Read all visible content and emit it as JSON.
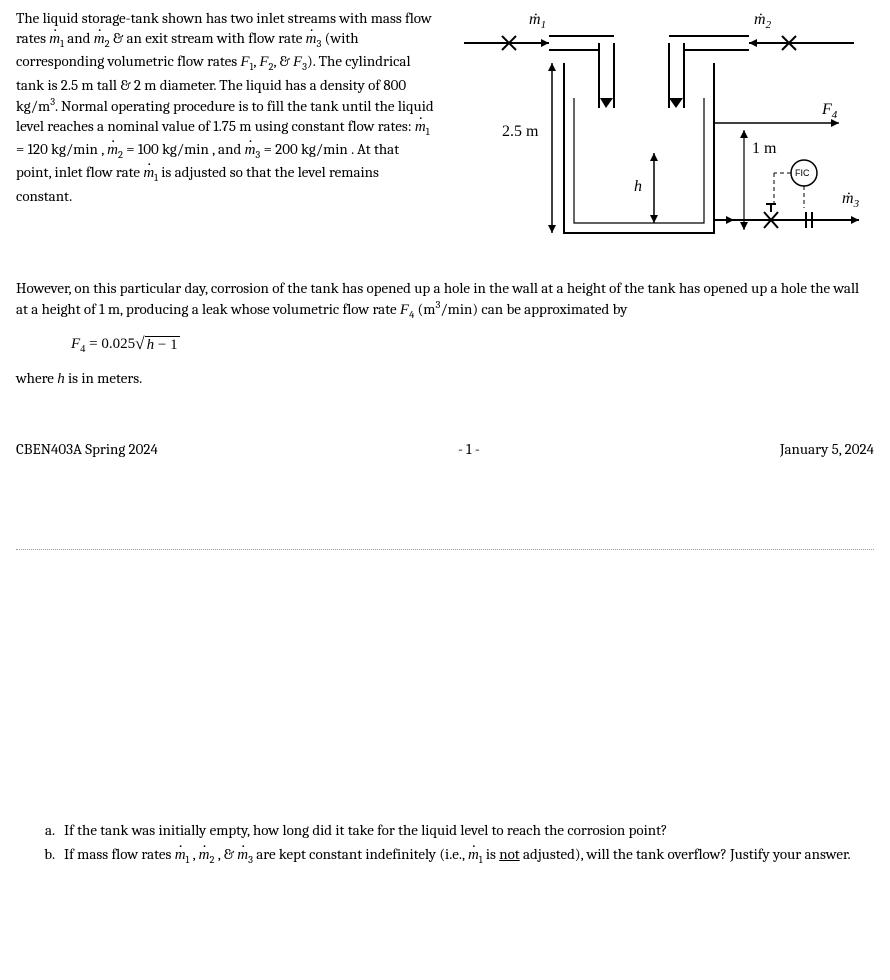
{
  "problem": {
    "intro_html": "The liquid storage-tank shown has two inlet streams with mass flow rates <span class='math-i mdot'>m</span><sub>1</sub> and <span class='math-i mdot'>m</span><sub>2</sub> &amp; an exit stream with flow rate <span class='math-i mdot'>m</span><sub>3</sub> (with corresponding volumetric flow rates <span class='math-i'>F</span><sub>1</sub>, <span class='math-i'>F</span><sub>2</sub>, &amp; <span class='math-i'>F</span><sub>3</sub>). The cylindrical tank is 2.5 m tall &amp; 2 m diameter. The liquid has a density of 800 kg/m<sup>3</sup>. Normal operating procedure is to fill the tank until the liquid level reaches a nominal value of 1.75 m using constant flow rates: <span class='math-i mdot'>m</span><sub>1</sub> = 120 kg/min , <span class='math-i mdot'>m</span><sub>2</sub> = 100 kg/min , and <span class='math-i mdot'>m</span><sub>3</sub> = 200 kg/min . At that point, inlet flow rate <span class='math-i mdot'>m</span><sub>1</sub> is adjusted so that the level remains constant.",
    "however_html": "However, on this particular day, corrosion of the tank has opened up a hole in the wall at a height of the tank has opened up a hole the wall at a height of 1 m, producing a leak whose volumetric flow rate <span class='math-i'>F</span><sub>4</sub> (m<sup>3</sup>/min) can be approximated by",
    "eq_html": "<span class='math-i'>F</span><sub>4</sub> = 0.025<span class='radic'>&radic;</span><span class='sqrt-box'><span class='math-i'>h</span> &minus; 1</span>",
    "where_html": "where <span class='math-i'>h</span> is in meters."
  },
  "footer": {
    "course": "CBEN403A Spring 2024",
    "page": "- 1 -",
    "date": "January 5, 2024"
  },
  "questions": {
    "a_html": "If the tank was initially empty, how long did it take for the liquid level to reach the corrosion point?",
    "b_html": "If mass flow rates <span class='math-i mdot'>m</span><sub>1</sub> , <span class='math-i mdot'>m</span><sub>2</sub> , &amp; <span class='math-i mdot'>m</span><sub>3</sub> are kept constant indefinitely (i.e., <span class='math-i mdot'>m</span><sub>1</sub> is <span class='underline'>not</span> adjusted), will the tank overflow? Justify your answer."
  },
  "figure": {
    "tank_height_label": "2.5 m",
    "leak_height_label": "1 m",
    "h_label": "h",
    "m1": "ṁ",
    "m1_sub": "1",
    "m2": "ṁ",
    "m2_sub": "2",
    "m3": "ṁ",
    "m3_sub": "3",
    "F4": "F",
    "F4_sub": "4",
    "fic": "FIC",
    "colors": {
      "stroke": "#000000",
      "fill_none": "none"
    },
    "line_width": 2
  }
}
